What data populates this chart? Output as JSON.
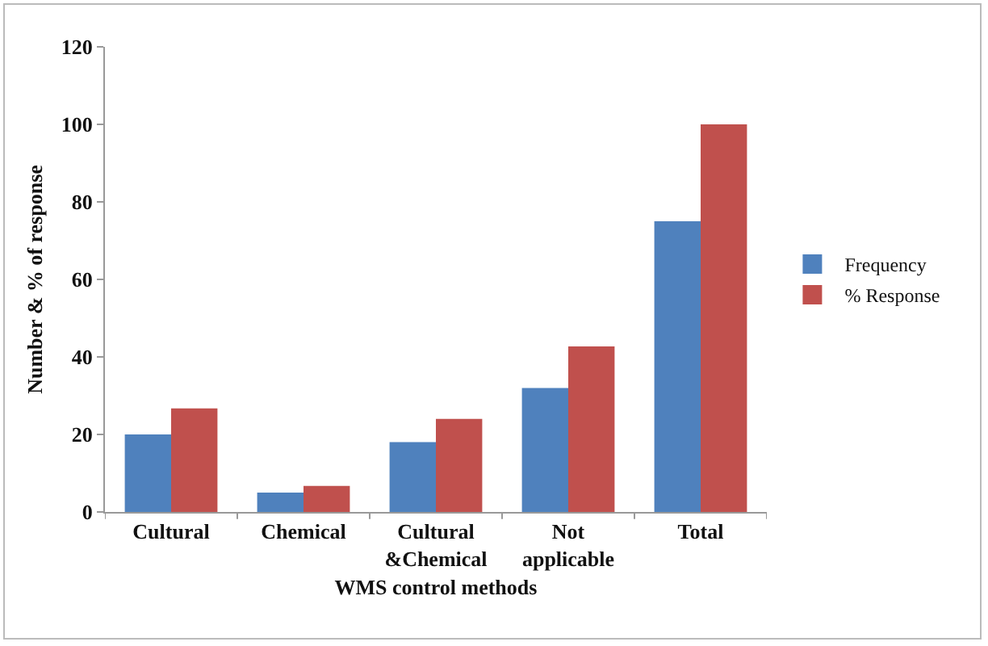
{
  "chart_data": {
    "type": "bar",
    "xlabel": "WMS control methods",
    "ylabel": "Number & % of response",
    "categories": [
      "Cultural",
      "Chemical",
      "Cultural &Chemical",
      "Not applicable",
      "Total"
    ],
    "series": [
      {
        "name": "Frequency",
        "color": "#4f81bd",
        "values": [
          20,
          5,
          18,
          32,
          75
        ]
      },
      {
        "name": "% Response",
        "color": "#c0504d",
        "values": [
          26.7,
          6.7,
          24,
          42.7,
          100
        ]
      }
    ],
    "ylim": [
      0,
      120
    ],
    "yticks": [
      0,
      20,
      40,
      60,
      80,
      100,
      120
    ],
    "grid": false,
    "legend": "right"
  }
}
